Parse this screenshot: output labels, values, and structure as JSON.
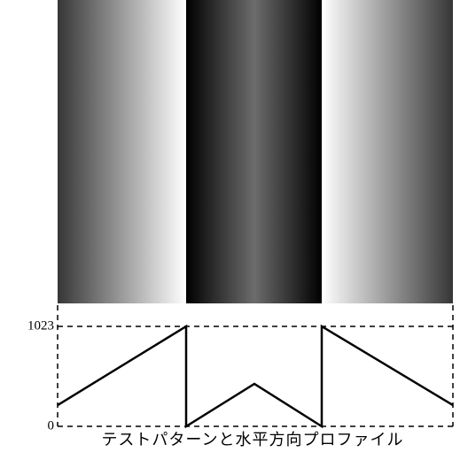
{
  "chart_data": {
    "type": "line",
    "caption": "テストパターンと水平方向プロファイル",
    "x": [
      0,
      145,
      145,
      222,
      298,
      298,
      446
    ],
    "series": [
      {
        "color": "#000000",
        "values": [
          217,
          1023,
          0,
          435,
          0,
          1023,
          217
        ]
      }
    ],
    "xlim": [
      0,
      446
    ],
    "ylim": [
      0,
      1240
    ],
    "yticks": [
      0,
      1023
    ]
  }
}
